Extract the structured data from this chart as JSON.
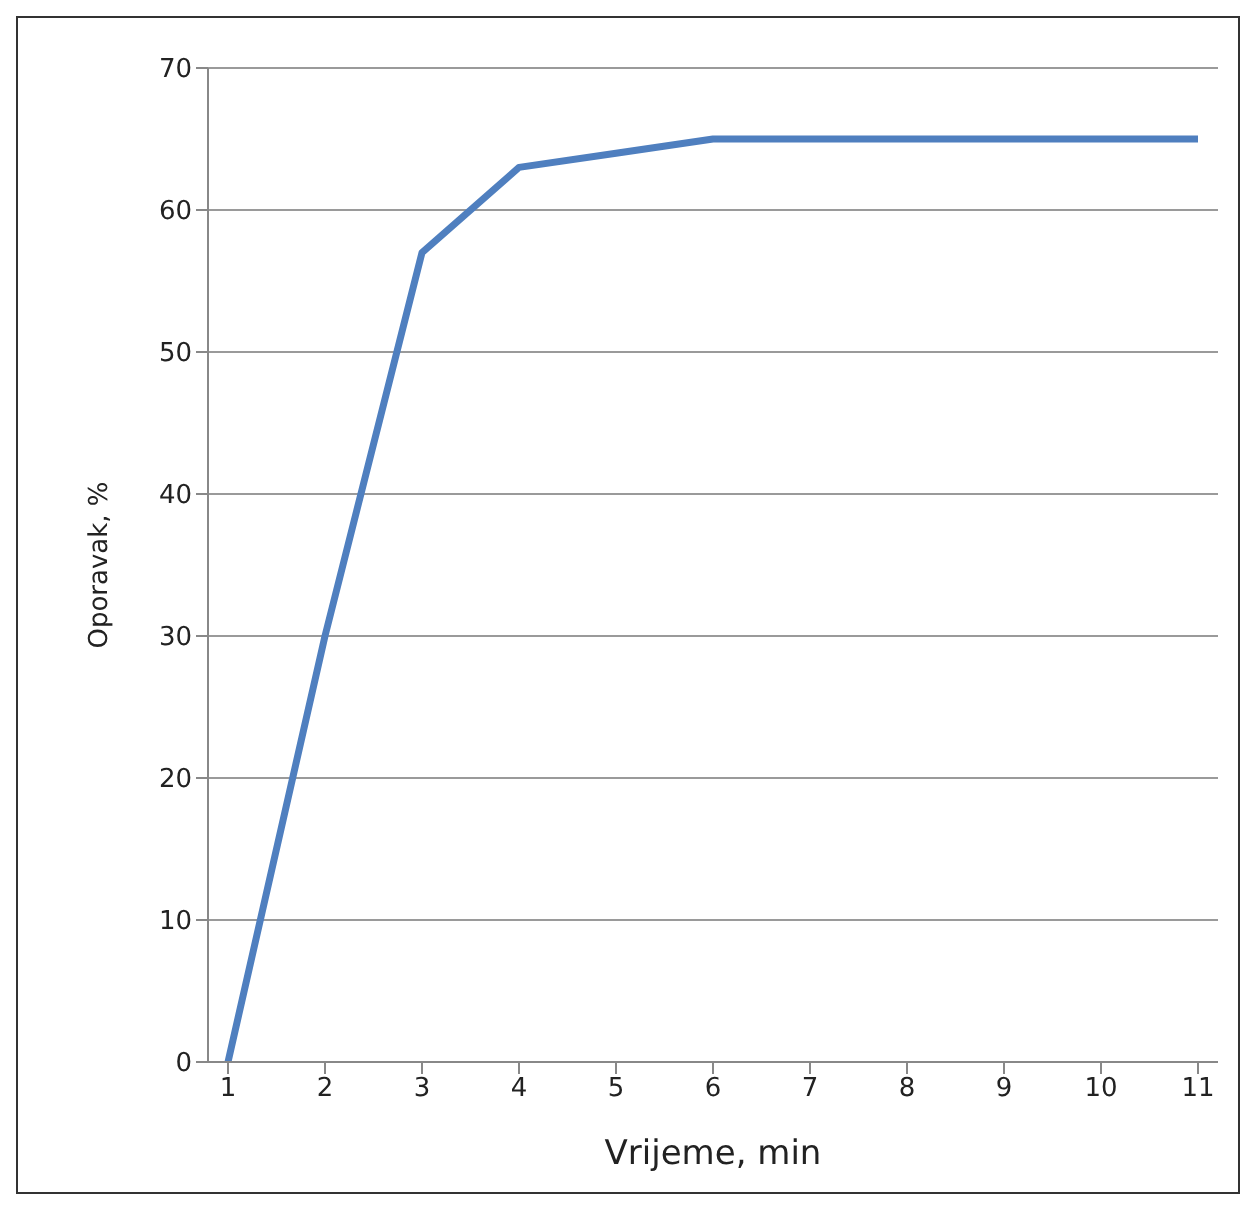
{
  "chart_data": {
    "type": "line",
    "xlabel": "Vrijeme, min",
    "ylabel": "Oporavak, %",
    "categories": [
      "1",
      "2",
      "3",
      "4",
      "5",
      "6",
      "7",
      "8",
      "9",
      "10",
      "11"
    ],
    "series": [
      {
        "color": "#4f7fbf",
        "values": [
          0,
          30,
          57,
          63,
          64,
          65,
          65,
          65,
          65,
          65,
          65
        ]
      }
    ],
    "ylim": [
      0,
      70
    ],
    "yticks": [
      0,
      10,
      20,
      30,
      40,
      50,
      60,
      70
    ],
    "grid": "y",
    "legend": false,
    "marker": "none",
    "line_style": "solid"
  }
}
